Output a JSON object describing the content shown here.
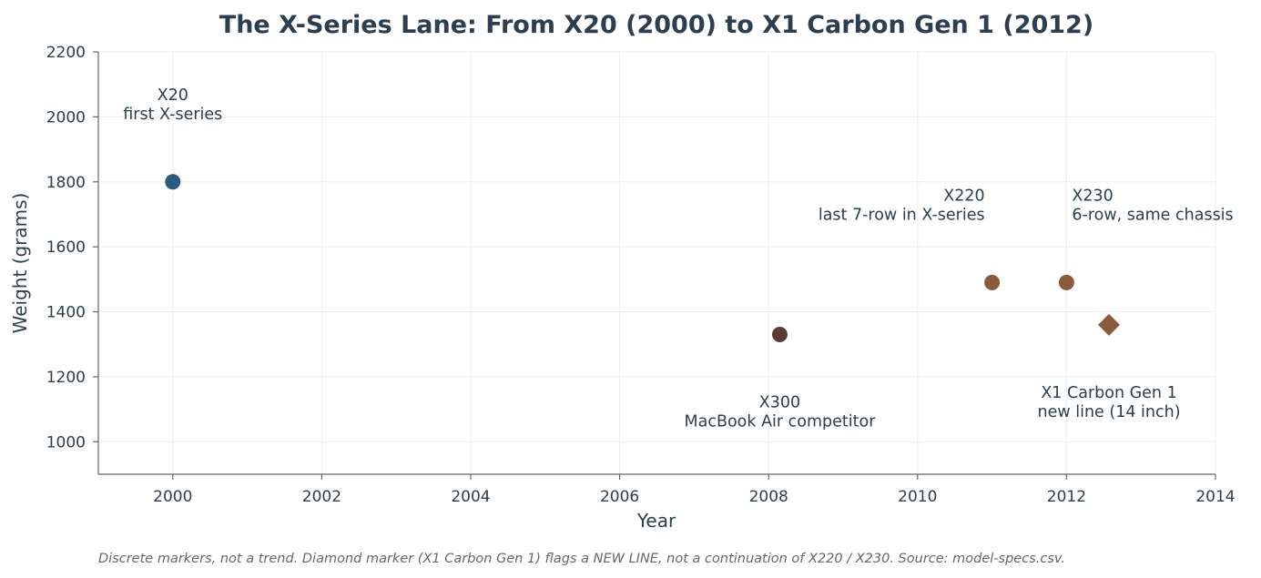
{
  "chart_data": {
    "type": "scatter",
    "title": "The X-Series Lane: From X20 (2000) to X1 Carbon Gen 1 (2012)",
    "xlabel": "Year",
    "ylabel": "Weight (grams)",
    "xlim": [
      1999,
      2014
    ],
    "ylim": [
      900,
      2200
    ],
    "xticks": [
      2000,
      2002,
      2004,
      2006,
      2008,
      2010,
      2012,
      2014
    ],
    "yticks": [
      1000,
      1200,
      1400,
      1600,
      1800,
      2000,
      2200
    ],
    "grid": true,
    "points": [
      {
        "model": "X20",
        "x": 2000.0,
        "y": 1800,
        "marker": "circle",
        "color": "#2b5c80",
        "annotation": [
          "X20",
          "first X-series"
        ],
        "label_pos": "above",
        "label_align": "middle"
      },
      {
        "model": "X300",
        "x": 2008.15,
        "y": 1330,
        "marker": "circle",
        "color": "#5a3d34",
        "annotation": [
          "X300",
          "MacBook Air competitor"
        ],
        "label_pos": "below",
        "label_align": "middle"
      },
      {
        "model": "X220",
        "x": 2011.0,
        "y": 1490,
        "marker": "circle",
        "color": "#8b5a3c",
        "annotation": [
          "X220",
          "last 7-row in X-series"
        ],
        "label_pos": "above",
        "label_align": "end"
      },
      {
        "model": "X230",
        "x": 2012.0,
        "y": 1490,
        "marker": "circle",
        "color": "#8b5a3c",
        "annotation": [
          "X230",
          "6-row, same chassis"
        ],
        "label_pos": "above",
        "label_align": "start"
      },
      {
        "model": "X1 Carbon Gen 1",
        "x": 2012.57,
        "y": 1360,
        "marker": "diamond",
        "color": "#8b5a3c",
        "annotation": [
          "X1 Carbon Gen 1",
          "new line (14 inch)"
        ],
        "label_pos": "below",
        "label_align": "middle"
      }
    ],
    "footnote": "Discrete markers, not a trend. Diamond marker (X1 Carbon Gen 1) flags a NEW LINE, not a continuation of X220 / X230. Source: model-specs.csv."
  }
}
